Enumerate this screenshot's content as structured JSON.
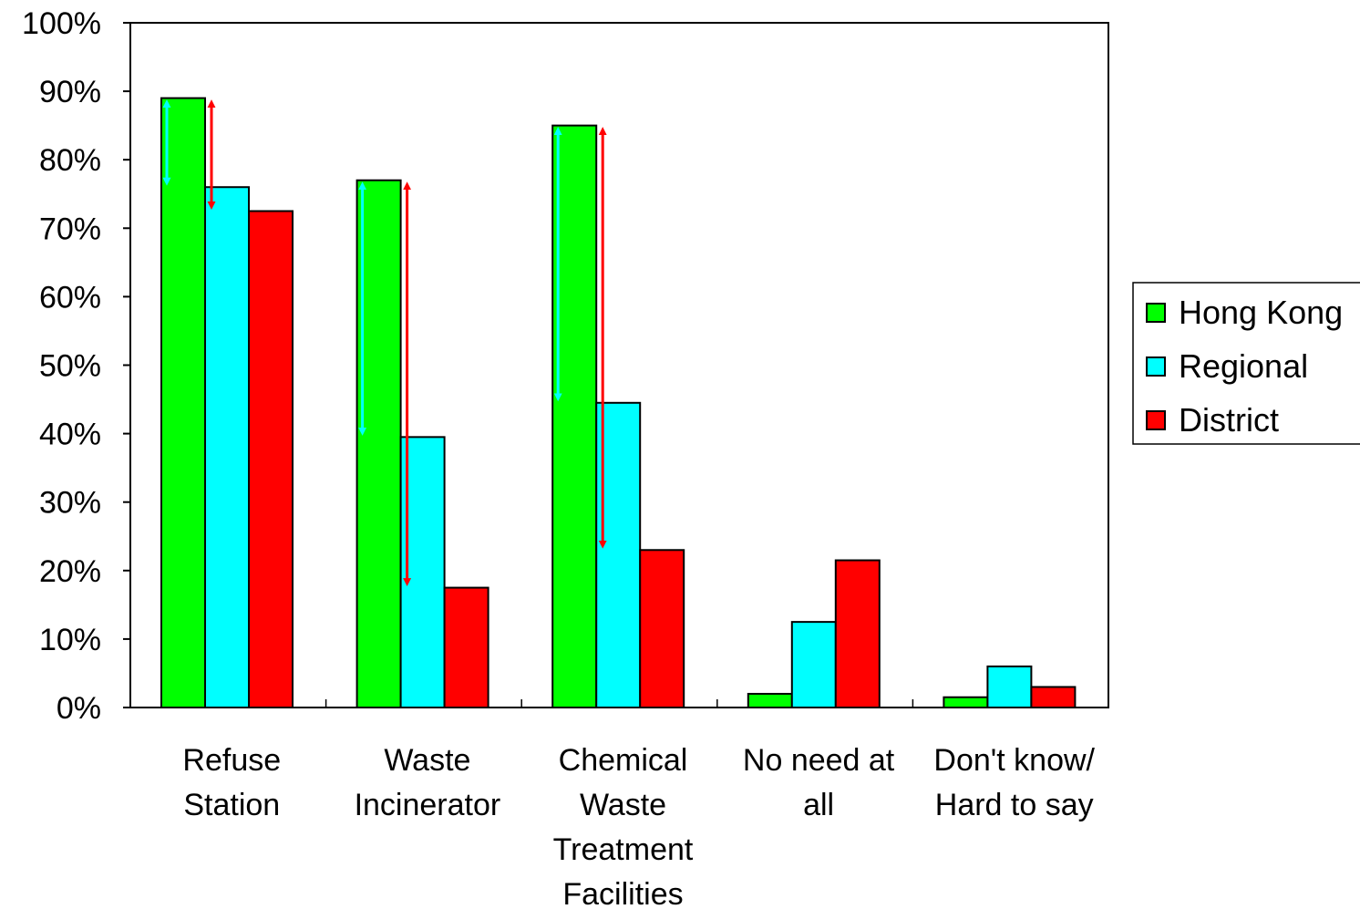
{
  "chart_data": {
    "type": "bar",
    "categories": [
      [
        "Refuse",
        "Station"
      ],
      [
        "Waste",
        "Incinerator"
      ],
      [
        "Chemical",
        "Waste",
        "Treatment",
        "Facilities"
      ],
      [
        "No need at",
        "all"
      ],
      [
        "Don't know/",
        "Hard to say"
      ]
    ],
    "series": [
      {
        "name": "Hong Kong",
        "color": "#00ff00",
        "values": [
          89,
          77,
          85,
          2,
          1.5
        ]
      },
      {
        "name": "Regional",
        "color": "#00ffff",
        "values": [
          76,
          39.5,
          44.5,
          12.5,
          6
        ]
      },
      {
        "name": "District",
        "color": "#ff0000",
        "values": [
          72.5,
          17.5,
          23,
          21.5,
          3
        ]
      }
    ],
    "yticks": [
      "0%",
      "10%",
      "20%",
      "30%",
      "40%",
      "50%",
      "60%",
      "70%",
      "80%",
      "90%",
      "100%"
    ],
    "ylim": [
      0,
      100
    ],
    "grid": false,
    "legend_position": "right",
    "annotations": [
      {
        "type": "double-arrow",
        "color": "#00ffff",
        "category": 0,
        "from": 89,
        "to": 76
      },
      {
        "type": "double-arrow",
        "color": "#ff0000",
        "category": 0,
        "from": 89,
        "to": 72.5
      },
      {
        "type": "double-arrow",
        "color": "#00ffff",
        "category": 1,
        "from": 77,
        "to": 39.5
      },
      {
        "type": "double-arrow",
        "color": "#ff0000",
        "category": 1,
        "from": 77,
        "to": 17.5
      },
      {
        "type": "double-arrow",
        "color": "#00ffff",
        "category": 2,
        "from": 85,
        "to": 44.5
      },
      {
        "type": "double-arrow",
        "color": "#ff0000",
        "category": 2,
        "from": 85,
        "to": 23
      }
    ]
  }
}
